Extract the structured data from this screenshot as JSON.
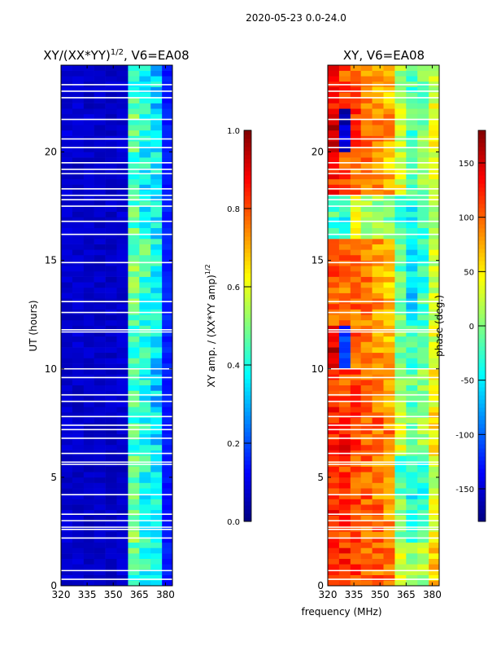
{
  "suptitle": "2020-05-23 0.0-24.0",
  "xlabel": "frequency (MHz)",
  "ylabel": "UT (hours)",
  "chart_data": [
    {
      "type": "heatmap",
      "title": "XY/(XX*YY)^1/2, V6=EA08",
      "title_main": "XY/(XX*YY)",
      "title_sup": "1/2",
      "title_tail": ", V6=EA08",
      "xlim": [
        320,
        384
      ],
      "ylim": [
        0,
        24
      ],
      "xticks": [
        "320",
        "335",
        "350",
        "365",
        "380"
      ],
      "yticks": [
        "0",
        "5",
        "10",
        "15",
        "20"
      ],
      "x_bin_centers_mhz": [
        323,
        330,
        336,
        342,
        349,
        355,
        362,
        368,
        375,
        381
      ],
      "y_bin_edges_hours": [
        0,
        2,
        4,
        6,
        8,
        10,
        12,
        14,
        16,
        18,
        20,
        22,
        24
      ],
      "values": [
        [
          0.08,
          0.08,
          0.07,
          0.07,
          0.07,
          0.08,
          0.45,
          0.4,
          0.35,
          0.15
        ],
        [
          0.08,
          0.07,
          0.07,
          0.07,
          0.07,
          0.08,
          0.5,
          0.42,
          0.38,
          0.15
        ],
        [
          0.07,
          0.07,
          0.07,
          0.07,
          0.07,
          0.07,
          0.48,
          0.4,
          0.35,
          0.14
        ],
        [
          0.08,
          0.08,
          0.07,
          0.07,
          0.07,
          0.08,
          0.45,
          0.38,
          0.36,
          0.15
        ],
        [
          0.08,
          0.07,
          0.07,
          0.07,
          0.07,
          0.08,
          0.44,
          0.4,
          0.34,
          0.14
        ],
        [
          0.08,
          0.08,
          0.07,
          0.07,
          0.07,
          0.08,
          0.46,
          0.42,
          0.36,
          0.15
        ],
        [
          0.07,
          0.07,
          0.07,
          0.07,
          0.07,
          0.07,
          0.48,
          0.4,
          0.38,
          0.16
        ],
        [
          0.08,
          0.08,
          0.07,
          0.07,
          0.07,
          0.08,
          0.5,
          0.44,
          0.4,
          0.16
        ],
        [
          0.08,
          0.07,
          0.07,
          0.07,
          0.07,
          0.08,
          0.46,
          0.4,
          0.36,
          0.15
        ],
        [
          0.08,
          0.07,
          0.07,
          0.07,
          0.07,
          0.08,
          0.45,
          0.38,
          0.35,
          0.14
        ],
        [
          0.09,
          0.08,
          0.08,
          0.07,
          0.07,
          0.08,
          0.46,
          0.4,
          0.36,
          0.15
        ],
        [
          0.08,
          0.08,
          0.07,
          0.07,
          0.07,
          0.08,
          0.44,
          0.38,
          0.34,
          0.14
        ]
      ],
      "colorbar": {
        "label_main": "XY amp. / (XX*YY amp)",
        "label_sup": "1/2",
        "range": [
          0,
          1
        ],
        "ticks": [
          "0.0",
          "0.2",
          "0.4",
          "0.6",
          "0.8",
          "1.0"
        ]
      }
    },
    {
      "type": "heatmap",
      "title": "XY, V6=EA08",
      "xlim": [
        320,
        384
      ],
      "ylim": [
        0,
        24
      ],
      "xticks": [
        "320",
        "335",
        "350",
        "365",
        "380"
      ],
      "yticks": [
        "0",
        "5",
        "10",
        "15",
        "20"
      ],
      "x_bin_centers_mhz": [
        323,
        330,
        336,
        342,
        349,
        355,
        362,
        368,
        375,
        381
      ],
      "y_bin_edges_hours": [
        0,
        2,
        4,
        6,
        8,
        10,
        12,
        14,
        16,
        18,
        20,
        22,
        24
      ],
      "values": [
        [
          130,
          120,
          110,
          100,
          100,
          90,
          40,
          10,
          20,
          60
        ],
        [
          120,
          110,
          110,
          100,
          100,
          80,
          0,
          -30,
          -20,
          40
        ],
        [
          110,
          120,
          100,
          100,
          90,
          70,
          -20,
          -40,
          -30,
          30
        ],
        [
          120,
          130,
          110,
          100,
          100,
          90,
          30,
          0,
          10,
          50
        ],
        [
          120,
          110,
          110,
          100,
          90,
          80,
          20,
          -10,
          0,
          40
        ],
        [
          150,
          -120,
          100,
          90,
          80,
          70,
          -10,
          -20,
          -10,
          30
        ],
        [
          100,
          90,
          100,
          90,
          80,
          70,
          0,
          -60,
          -20,
          20
        ],
        [
          110,
          100,
          100,
          90,
          80,
          70,
          -10,
          -50,
          -30,
          20
        ],
        [
          -20,
          -40,
          30,
          20,
          10,
          0,
          -30,
          -40,
          -20,
          10
        ],
        [
          120,
          110,
          100,
          90,
          80,
          70,
          40,
          -10,
          0,
          40
        ],
        [
          160,
          -150,
          120,
          100,
          90,
          80,
          20,
          -20,
          0,
          40
        ],
        [
          130,
          110,
          100,
          90,
          80,
          70,
          10,
          -20,
          -10,
          30
        ]
      ],
      "colorbar": {
        "label": "phase (deg.)",
        "range": [
          -180,
          180
        ],
        "ticks": [
          "-150",
          "-100",
          "-50",
          "0",
          "50",
          "100",
          "150"
        ]
      }
    }
  ],
  "flagged_hours": [
    0.3,
    0.7,
    2.2,
    2.6,
    2.7,
    3.0,
    3.3,
    4.2,
    5.6,
    5.7,
    6.1,
    6.8,
    7.2,
    7.4,
    7.8,
    8.5,
    8.8,
    9.6,
    10.0,
    11.7,
    11.8,
    12.6,
    13.1,
    14.9,
    16.2,
    16.8,
    17.5,
    17.8,
    18.0,
    18.3,
    19.0,
    19.2,
    19.5,
    20.2,
    20.6,
    21.5,
    22.5,
    22.8,
    23.1
  ]
}
